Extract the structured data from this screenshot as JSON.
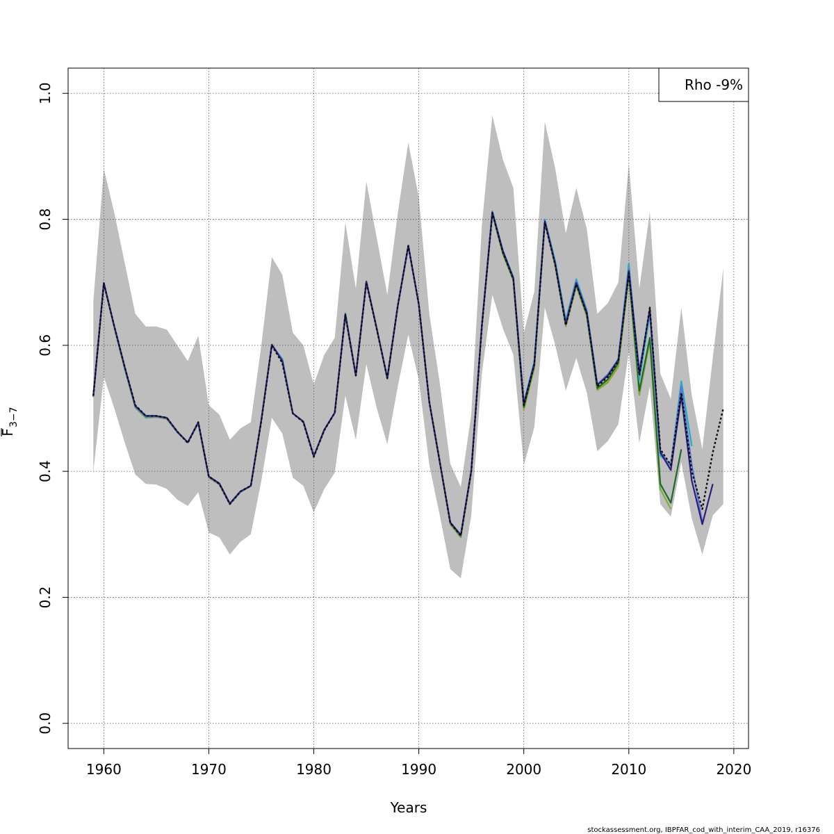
{
  "chart_data": {
    "type": "line",
    "xlabel": "Years",
    "ylabel": "F",
    "ylabel_sub": "3−7",
    "xlim": [
      1956.6,
      2021.4
    ],
    "ylim": [
      -0.04,
      1.04
    ],
    "x_ticks": [
      1960,
      1970,
      1980,
      1990,
      2000,
      2010,
      2020
    ],
    "x_tick_labels": [
      "1960",
      "1970",
      "1980",
      "1990",
      "2000",
      "2010",
      "2020"
    ],
    "y_ticks": [
      0.0,
      0.2,
      0.4,
      0.6,
      0.8,
      1.0
    ],
    "y_tick_labels": [
      "0.0",
      "0.2",
      "0.4",
      "0.6",
      "0.8",
      "1.0"
    ],
    "grid": true,
    "legend": {
      "text": "Rho -9%",
      "position": "top-right"
    },
    "credit": "stockassessment.org, IBPFAR_cod_with_interim_CAA_2019, r16376",
    "band": {
      "color": "#bebebe",
      "x": [
        1959,
        1960,
        1961,
        1962,
        1963,
        1964,
        1965,
        1966,
        1967,
        1968,
        1969,
        1970,
        1971,
        1972,
        1973,
        1974,
        1975,
        1976,
        1977,
        1978,
        1979,
        1980,
        1981,
        1982,
        1983,
        1984,
        1985,
        1986,
        1987,
        1988,
        1989,
        1990,
        1991,
        1992,
        1993,
        1994,
        1995,
        1996,
        1997,
        1998,
        1999,
        2000,
        2001,
        2002,
        2003,
        2004,
        2005,
        2006,
        2007,
        2008,
        2009,
        2010,
        2011,
        2012,
        2013,
        2014,
        2015,
        2016,
        2017,
        2018,
        2019
      ],
      "upper": [
        0.67,
        0.88,
        0.81,
        0.73,
        0.65,
        0.63,
        0.63,
        0.625,
        0.6,
        0.575,
        0.615,
        0.505,
        0.49,
        0.45,
        0.468,
        0.478,
        0.6,
        0.74,
        0.712,
        0.62,
        0.6,
        0.538,
        0.585,
        0.612,
        0.795,
        0.69,
        0.86,
        0.77,
        0.68,
        0.81,
        0.922,
        0.835,
        0.65,
        0.54,
        0.412,
        0.375,
        0.49,
        0.79,
        0.965,
        0.895,
        0.85,
        0.62,
        0.685,
        0.955,
        0.88,
        0.778,
        0.85,
        0.785,
        0.65,
        0.667,
        0.7,
        0.888,
        0.69,
        0.812,
        0.555,
        0.515,
        0.66,
        0.52,
        0.435,
        0.58,
        0.722
      ],
      "lower": [
        0.4,
        0.55,
        0.5,
        0.445,
        0.395,
        0.38,
        0.379,
        0.372,
        0.355,
        0.345,
        0.367,
        0.303,
        0.295,
        0.268,
        0.288,
        0.3,
        0.385,
        0.485,
        0.46,
        0.39,
        0.377,
        0.335,
        0.372,
        0.398,
        0.52,
        0.45,
        0.57,
        0.5,
        0.443,
        0.535,
        0.617,
        0.545,
        0.41,
        0.33,
        0.245,
        0.23,
        0.33,
        0.555,
        0.68,
        0.627,
        0.585,
        0.41,
        0.47,
        0.66,
        0.6,
        0.528,
        0.58,
        0.525,
        0.432,
        0.448,
        0.475,
        0.59,
        0.445,
        0.535,
        0.348,
        0.328,
        0.415,
        0.325,
        0.268,
        0.33,
        0.348
      ]
    },
    "series": [
      {
        "color": "#0d0d0d",
        "dashed": true,
        "x": [
          1959,
          1960,
          1961,
          1962,
          1963,
          1964,
          1965,
          1966,
          1967,
          1968,
          1969,
          1970,
          1971,
          1972,
          1973,
          1974,
          1975,
          1976,
          1977,
          1978,
          1979,
          1980,
          1981,
          1982,
          1983,
          1984,
          1985,
          1986,
          1987,
          1988,
          1989,
          1990,
          1991,
          1992,
          1993,
          1994,
          1995,
          1996,
          1997,
          1998,
          1999,
          2000,
          2001,
          2002,
          2003,
          2004,
          2005,
          2006,
          2007,
          2008,
          2009,
          2010,
          2011,
          2012,
          2013,
          2014,
          2015,
          2016,
          2017,
          2018,
          2019
        ],
        "values": [
          0.52,
          0.698,
          0.63,
          0.565,
          0.505,
          0.488,
          0.488,
          0.485,
          0.463,
          0.445,
          0.478,
          0.392,
          0.38,
          0.348,
          0.368,
          0.377,
          0.48,
          0.6,
          0.572,
          0.492,
          0.478,
          0.423,
          0.465,
          0.493,
          0.648,
          0.552,
          0.7,
          0.625,
          0.548,
          0.663,
          0.758,
          0.665,
          0.51,
          0.415,
          0.318,
          0.298,
          0.4,
          0.63,
          0.81,
          0.748,
          0.705,
          0.505,
          0.57,
          0.795,
          0.727,
          0.632,
          0.697,
          0.65,
          0.535,
          0.55,
          0.575,
          0.715,
          0.552,
          0.66,
          0.435,
          0.41,
          0.525,
          0.4,
          0.34,
          0.43,
          0.5
        ]
      },
      {
        "color": "#2a1f7a",
        "dashed": false,
        "x": [
          1959,
          1960,
          1961,
          1962,
          1963,
          1964,
          1965,
          1966,
          1967,
          1968,
          1969,
          1970,
          1971,
          1972,
          1973,
          1974,
          1975,
          1976,
          1977,
          1978,
          1979,
          1980,
          1981,
          1982,
          1983,
          1984,
          1985,
          1986,
          1987,
          1988,
          1989,
          1990,
          1991,
          1992,
          1993,
          1994,
          1995,
          1996,
          1997,
          1998,
          1999,
          2000,
          2001,
          2002,
          2003,
          2004,
          2005,
          2006,
          2007,
          2008,
          2009,
          2010,
          2011,
          2012,
          2013,
          2014,
          2015,
          2016,
          2017,
          2018
        ],
        "values": [
          0.52,
          0.699,
          0.63,
          0.565,
          0.504,
          0.488,
          0.488,
          0.485,
          0.463,
          0.446,
          0.478,
          0.392,
          0.381,
          0.349,
          0.368,
          0.377,
          0.481,
          0.601,
          0.575,
          0.492,
          0.479,
          0.424,
          0.466,
          0.493,
          0.649,
          0.552,
          0.701,
          0.626,
          0.548,
          0.663,
          0.758,
          0.665,
          0.51,
          0.415,
          0.319,
          0.299,
          0.401,
          0.631,
          0.811,
          0.75,
          0.707,
          0.507,
          0.571,
          0.797,
          0.729,
          0.634,
          0.699,
          0.652,
          0.537,
          0.552,
          0.577,
          0.718,
          0.555,
          0.658,
          0.43,
          0.402,
          0.52,
          0.385,
          0.316,
          0.38
        ]
      },
      {
        "color": "#5a7ad8",
        "dashed": false,
        "x": [
          1959,
          1960,
          1961,
          1962,
          1963,
          1964,
          1965,
          1966,
          1967,
          1968,
          1969,
          1970,
          1971,
          1972,
          1973,
          1974,
          1975,
          1976,
          1977,
          1978,
          1979,
          1980,
          1981,
          1982,
          1983,
          1984,
          1985,
          1986,
          1987,
          1988,
          1989,
          1990,
          1991,
          1992,
          1993,
          1994,
          1995,
          1996,
          1997,
          1998,
          1999,
          2000,
          2001,
          2002,
          2003,
          2004,
          2005,
          2006,
          2007,
          2008,
          2009,
          2010,
          2011,
          2012,
          2013,
          2014,
          2015,
          2016,
          2017
        ],
        "values": [
          0.52,
          0.699,
          0.63,
          0.564,
          0.503,
          0.487,
          0.487,
          0.484,
          0.462,
          0.446,
          0.477,
          0.391,
          0.38,
          0.348,
          0.367,
          0.377,
          0.481,
          0.601,
          0.577,
          0.492,
          0.479,
          0.424,
          0.466,
          0.493,
          0.65,
          0.552,
          0.701,
          0.626,
          0.548,
          0.663,
          0.758,
          0.665,
          0.51,
          0.415,
          0.319,
          0.298,
          0.401,
          0.631,
          0.812,
          0.75,
          0.707,
          0.507,
          0.572,
          0.798,
          0.73,
          0.636,
          0.701,
          0.654,
          0.538,
          0.554,
          0.578,
          0.722,
          0.56,
          0.655,
          0.432,
          0.408,
          0.535,
          0.41,
          0.32
        ]
      },
      {
        "color": "#2ba7c2",
        "dashed": false,
        "x": [
          1959,
          1960,
          1961,
          1962,
          1963,
          1964,
          1965,
          1966,
          1967,
          1968,
          1969,
          1970,
          1971,
          1972,
          1973,
          1974,
          1975,
          1976,
          1977,
          1978,
          1979,
          1980,
          1981,
          1982,
          1983,
          1984,
          1985,
          1986,
          1987,
          1988,
          1989,
          1990,
          1991,
          1992,
          1993,
          1994,
          1995,
          1996,
          1997,
          1998,
          1999,
          2000,
          2001,
          2002,
          2003,
          2004,
          2005,
          2006,
          2007,
          2008,
          2009,
          2010,
          2011,
          2012,
          2013,
          2014,
          2015,
          2016
        ],
        "values": [
          0.519,
          0.699,
          0.629,
          0.563,
          0.502,
          0.486,
          0.487,
          0.484,
          0.462,
          0.446,
          0.477,
          0.391,
          0.38,
          0.348,
          0.367,
          0.377,
          0.481,
          0.601,
          0.578,
          0.492,
          0.479,
          0.424,
          0.466,
          0.493,
          0.65,
          0.552,
          0.701,
          0.626,
          0.548,
          0.663,
          0.758,
          0.665,
          0.51,
          0.415,
          0.319,
          0.298,
          0.401,
          0.632,
          0.813,
          0.751,
          0.708,
          0.509,
          0.574,
          0.8,
          0.733,
          0.64,
          0.705,
          0.656,
          0.538,
          0.552,
          0.578,
          0.73,
          0.545,
          0.65,
          0.425,
          0.41,
          0.543,
          0.44
        ]
      },
      {
        "color": "#1a6b2a",
        "dashed": false,
        "x": [
          1959,
          1960,
          1961,
          1962,
          1963,
          1964,
          1965,
          1966,
          1967,
          1968,
          1969,
          1970,
          1971,
          1972,
          1973,
          1974,
          1975,
          1976,
          1977,
          1978,
          1979,
          1980,
          1981,
          1982,
          1983,
          1984,
          1985,
          1986,
          1987,
          1988,
          1989,
          1990,
          1991,
          1992,
          1993,
          1994,
          1995,
          1996,
          1997,
          1998,
          1999,
          2000,
          2001,
          2002,
          2003,
          2004,
          2005,
          2006,
          2007,
          2008,
          2009,
          2010,
          2011,
          2012,
          2013,
          2014,
          2015
        ],
        "values": [
          0.519,
          0.699,
          0.629,
          0.563,
          0.502,
          0.486,
          0.487,
          0.484,
          0.462,
          0.446,
          0.477,
          0.391,
          0.38,
          0.348,
          0.367,
          0.377,
          0.481,
          0.6,
          0.578,
          0.492,
          0.479,
          0.424,
          0.466,
          0.493,
          0.65,
          0.552,
          0.701,
          0.626,
          0.547,
          0.663,
          0.758,
          0.665,
          0.51,
          0.414,
          0.318,
          0.297,
          0.4,
          0.63,
          0.81,
          0.747,
          0.705,
          0.502,
          0.568,
          0.797,
          0.728,
          0.633,
          0.697,
          0.649,
          0.532,
          0.546,
          0.572,
          0.715,
          0.528,
          0.612,
          0.38,
          0.35,
          0.435
        ]
      },
      {
        "color": "#78b03a",
        "dashed": false,
        "x": [
          1959,
          1960,
          1961,
          1962,
          1963,
          1964,
          1965,
          1966,
          1967,
          1968,
          1969,
          1970,
          1971,
          1972,
          1973,
          1974,
          1975,
          1976,
          1977,
          1978,
          1979,
          1980,
          1981,
          1982,
          1983,
          1984,
          1985,
          1986,
          1987,
          1988,
          1989,
          1990,
          1991,
          1992,
          1993,
          1994,
          1995,
          1996,
          1997,
          1998,
          1999,
          2000,
          2001,
          2002,
          2003,
          2004,
          2005,
          2006,
          2007,
          2008,
          2009,
          2010,
          2011,
          2012,
          2013,
          2014
        ],
        "values": [
          0.518,
          0.699,
          0.629,
          0.563,
          0.502,
          0.485,
          0.486,
          0.484,
          0.462,
          0.446,
          0.477,
          0.391,
          0.38,
          0.348,
          0.367,
          0.377,
          0.481,
          0.6,
          0.578,
          0.492,
          0.479,
          0.424,
          0.466,
          0.493,
          0.651,
          0.552,
          0.702,
          0.626,
          0.547,
          0.663,
          0.758,
          0.665,
          0.51,
          0.414,
          0.317,
          0.296,
          0.4,
          0.63,
          0.81,
          0.746,
          0.704,
          0.5,
          0.566,
          0.797,
          0.726,
          0.631,
          0.695,
          0.647,
          0.53,
          0.543,
          0.568,
          0.712,
          0.522,
          0.608,
          0.372,
          0.34
        ]
      },
      {
        "color": "#a89a2a",
        "dashed": false,
        "x": [
          1959,
          1960,
          1961,
          1962,
          1963,
          1964,
          1965,
          1966,
          1967,
          1968,
          1969,
          1970,
          1971,
          1972,
          1973,
          1974,
          1975,
          1976,
          1977,
          1978,
          1979,
          1980,
          1981,
          1982,
          1983,
          1984,
          1985,
          1986,
          1987,
          1988,
          1989,
          1990,
          1991,
          1992,
          1993,
          1994,
          1995,
          1996,
          1997,
          1998,
          1999,
          2000,
          2001,
          2002,
          2003,
          2004,
          2005,
          2006,
          2007,
          2008,
          2009,
          2010,
          2011,
          2012,
          2013
        ],
        "values": [
          0.518,
          0.698,
          0.628,
          0.562,
          0.501,
          0.485,
          0.486,
          0.483,
          0.462,
          0.446,
          0.476,
          0.39,
          0.379,
          0.348,
          0.367,
          0.377,
          0.481,
          0.6,
          0.578,
          0.492,
          0.479,
          0.424,
          0.466,
          0.493,
          0.651,
          0.552,
          0.702,
          0.626,
          0.547,
          0.663,
          0.758,
          0.665,
          0.51,
          0.414,
          0.316,
          0.295,
          0.399,
          0.629,
          0.809,
          0.745,
          0.703,
          0.498,
          0.564,
          0.796,
          0.725,
          0.63,
          0.694,
          0.646,
          0.529,
          0.541,
          0.566,
          0.71,
          0.521,
          0.606,
          0.37
        ]
      }
    ]
  }
}
